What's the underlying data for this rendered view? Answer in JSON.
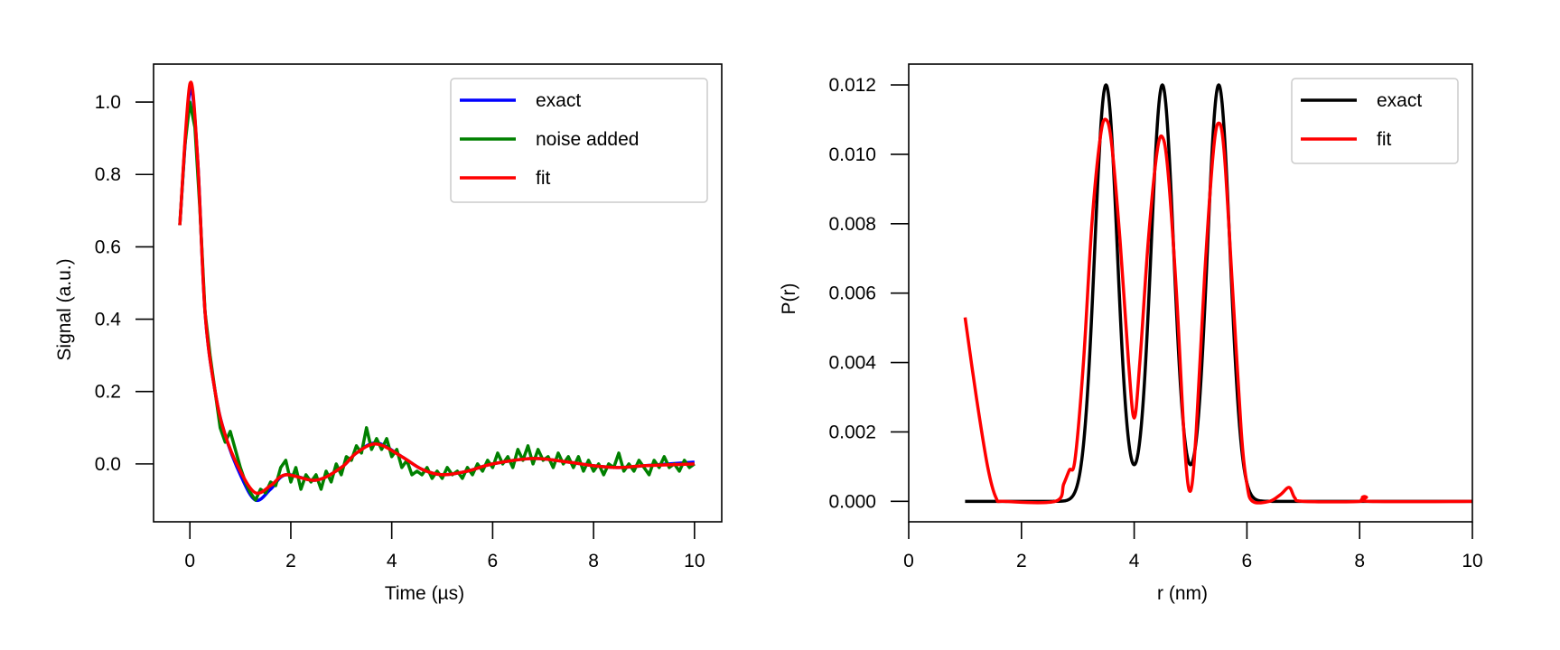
{
  "chart_data": [
    {
      "type": "line",
      "xlabel": "Time (µs)",
      "ylabel": "Signal (a.u.)",
      "xlim": [
        -0.72,
        10.54
      ],
      "ylim": [
        -0.16,
        1.105
      ],
      "xticks": [
        "0",
        "2",
        "4",
        "6",
        "8",
        "10"
      ],
      "xtick_values": [
        0,
        2,
        4,
        6,
        8,
        10
      ],
      "yticks": [
        "0.0",
        "0.2",
        "0.4",
        "0.6",
        "0.8",
        "1.0"
      ],
      "ytick_values": [
        0,
        0.2,
        0.4,
        0.6,
        0.8,
        1.0
      ],
      "grid": false,
      "legend_placement": "top-right",
      "series": [
        {
          "name": "exact",
          "color": "#0000ff",
          "style": "smooth",
          "points": [
            [
              -0.2,
              0.66
            ],
            [
              0,
              1.03
            ],
            [
              0.15,
              0.85
            ],
            [
              0.3,
              0.42
            ],
            [
              0.5,
              0.2
            ],
            [
              0.7,
              0.08
            ],
            [
              1.0,
              -0.03
            ],
            [
              1.3,
              -0.1
            ],
            [
              1.6,
              -0.07
            ],
            [
              1.9,
              -0.03
            ],
            [
              2.5,
              -0.045
            ],
            [
              3.0,
              -0.01
            ],
            [
              3.3,
              0.03
            ],
            [
              3.7,
              0.058
            ],
            [
              4.2,
              0.02
            ],
            [
              4.6,
              -0.015
            ],
            [
              5.0,
              -0.03
            ],
            [
              5.5,
              -0.02
            ],
            [
              6.0,
              0.0
            ],
            [
              6.8,
              0.015
            ],
            [
              7.5,
              0.005
            ],
            [
              8.0,
              -0.005
            ],
            [
              8.5,
              -0.01
            ],
            [
              9.0,
              -0.005
            ],
            [
              10.0,
              0.005
            ]
          ]
        },
        {
          "name": "noise added",
          "color": "#008000",
          "style": "linear",
          "points": [
            [
              -0.2,
              0.66
            ],
            [
              -0.1,
              0.88
            ],
            [
              0,
              1.0
            ],
            [
              0.1,
              0.93
            ],
            [
              0.2,
              0.7
            ],
            [
              0.3,
              0.42
            ],
            [
              0.4,
              0.3
            ],
            [
              0.5,
              0.2
            ],
            [
              0.6,
              0.1
            ],
            [
              0.7,
              0.06
            ],
            [
              0.8,
              0.09
            ],
            [
              0.9,
              0.04
            ],
            [
              1.0,
              -0.01
            ],
            [
              1.1,
              -0.05
            ],
            [
              1.2,
              -0.08
            ],
            [
              1.3,
              -0.1
            ],
            [
              1.4,
              -0.07
            ],
            [
              1.5,
              -0.08
            ],
            [
              1.6,
              -0.05
            ],
            [
              1.7,
              -0.06
            ],
            [
              1.8,
              -0.01
            ],
            [
              1.9,
              0.01
            ],
            [
              2.0,
              -0.05
            ],
            [
              2.1,
              -0.01
            ],
            [
              2.2,
              -0.07
            ],
            [
              2.3,
              -0.03
            ],
            [
              2.4,
              -0.05
            ],
            [
              2.5,
              -0.03
            ],
            [
              2.6,
              -0.07
            ],
            [
              2.7,
              -0.02
            ],
            [
              2.8,
              -0.05
            ],
            [
              2.9,
              0.0
            ],
            [
              3.0,
              -0.03
            ],
            [
              3.1,
              0.02
            ],
            [
              3.2,
              0.01
            ],
            [
              3.3,
              0.05
            ],
            [
              3.4,
              0.03
            ],
            [
              3.5,
              0.1
            ],
            [
              3.6,
              0.04
            ],
            [
              3.7,
              0.07
            ],
            [
              3.8,
              0.04
            ],
            [
              3.9,
              0.07
            ],
            [
              4.0,
              0.02
            ],
            [
              4.1,
              0.04
            ],
            [
              4.2,
              -0.01
            ],
            [
              4.3,
              0.01
            ],
            [
              4.4,
              -0.03
            ],
            [
              4.5,
              -0.02
            ],
            [
              4.6,
              -0.03
            ],
            [
              4.7,
              -0.01
            ],
            [
              4.8,
              -0.04
            ],
            [
              4.9,
              -0.02
            ],
            [
              5.0,
              -0.04
            ],
            [
              5.1,
              -0.01
            ],
            [
              5.2,
              -0.03
            ],
            [
              5.3,
              -0.02
            ],
            [
              5.4,
              -0.04
            ],
            [
              5.5,
              -0.01
            ],
            [
              5.6,
              -0.03
            ],
            [
              5.7,
              0.0
            ],
            [
              5.8,
              -0.02
            ],
            [
              5.9,
              0.01
            ],
            [
              6.0,
              -0.01
            ],
            [
              6.1,
              0.03
            ],
            [
              6.2,
              0.0
            ],
            [
              6.3,
              0.02
            ],
            [
              6.4,
              -0.01
            ],
            [
              6.5,
              0.04
            ],
            [
              6.6,
              0.01
            ],
            [
              6.7,
              0.05
            ],
            [
              6.8,
              0.0
            ],
            [
              6.9,
              0.04
            ],
            [
              7.0,
              0.01
            ],
            [
              7.1,
              0.02
            ],
            [
              7.2,
              -0.01
            ],
            [
              7.3,
              0.03
            ],
            [
              7.4,
              0.0
            ],
            [
              7.5,
              0.02
            ],
            [
              7.6,
              -0.01
            ],
            [
              7.7,
              0.02
            ],
            [
              7.8,
              -0.02
            ],
            [
              7.9,
              0.01
            ],
            [
              8.0,
              -0.02
            ],
            [
              8.1,
              0.0
            ],
            [
              8.2,
              -0.03
            ],
            [
              8.3,
              0.0
            ],
            [
              8.4,
              -0.01
            ],
            [
              8.5,
              0.03
            ],
            [
              8.6,
              -0.02
            ],
            [
              8.7,
              0.0
            ],
            [
              8.8,
              -0.02
            ],
            [
              8.9,
              0.01
            ],
            [
              9.0,
              -0.01
            ],
            [
              9.1,
              -0.03
            ],
            [
              9.2,
              0.01
            ],
            [
              9.3,
              -0.01
            ],
            [
              9.4,
              0.02
            ],
            [
              9.5,
              -0.01
            ],
            [
              9.6,
              0.0
            ],
            [
              9.7,
              -0.02
            ],
            [
              9.8,
              0.01
            ],
            [
              9.9,
              -0.01
            ],
            [
              10.0,
              0.0
            ]
          ]
        },
        {
          "name": "fit",
          "color": "#ff0000",
          "style": "smooth",
          "points": [
            [
              -0.2,
              0.66
            ],
            [
              0,
              1.05
            ],
            [
              0.15,
              0.85
            ],
            [
              0.3,
              0.42
            ],
            [
              0.5,
              0.2
            ],
            [
              0.7,
              0.08
            ],
            [
              1.0,
              -0.02
            ],
            [
              1.3,
              -0.08
            ],
            [
              1.6,
              -0.06
            ],
            [
              1.9,
              -0.03
            ],
            [
              2.5,
              -0.045
            ],
            [
              3.0,
              -0.01
            ],
            [
              3.3,
              0.03
            ],
            [
              3.7,
              0.055
            ],
            [
              4.2,
              0.02
            ],
            [
              4.6,
              -0.015
            ],
            [
              5.0,
              -0.03
            ],
            [
              5.5,
              -0.02
            ],
            [
              6.0,
              0.0
            ],
            [
              6.8,
              0.015
            ],
            [
              7.5,
              0.005
            ],
            [
              8.0,
              -0.005
            ],
            [
              8.5,
              -0.01
            ],
            [
              9.0,
              -0.005
            ],
            [
              10.0,
              0.0
            ]
          ]
        }
      ]
    },
    {
      "type": "line",
      "xlabel": "r (nm)",
      "ylabel": "P(r)",
      "xlim": [
        0,
        10
      ],
      "ylim": [
        -0.00059,
        0.0126
      ],
      "xticks": [
        "0",
        "2",
        "4",
        "6",
        "8",
        "10"
      ],
      "xtick_values": [
        0,
        2,
        4,
        6,
        8,
        10
      ],
      "yticks": [
        "0.000",
        "0.002",
        "0.004",
        "0.006",
        "0.008",
        "0.010",
        "0.012"
      ],
      "ytick_values": [
        0,
        0.002,
        0.004,
        0.006,
        0.008,
        0.01,
        0.012
      ],
      "grid": false,
      "legend_placement": "top-right",
      "series": [
        {
          "name": "exact",
          "color": "#000000",
          "style": "gaussians",
          "range": [
            1,
            10
          ],
          "centers": [
            3.5,
            4.5,
            5.5
          ],
          "height": 0.012,
          "sigma": 0.2
        },
        {
          "name": "fit",
          "color": "#ff0000",
          "style": "smooth",
          "points": [
            [
              1.0,
              0.0053
            ],
            [
              1.2,
              0.003
            ],
            [
              1.4,
              0.001
            ],
            [
              1.55,
              0.0001
            ],
            [
              1.7,
              0
            ],
            [
              2.6,
              0
            ],
            [
              2.75,
              0.0005
            ],
            [
              2.85,
              0.0009
            ],
            [
              2.95,
              0.0012
            ],
            [
              3.1,
              0.004
            ],
            [
              3.25,
              0.008
            ],
            [
              3.4,
              0.0105
            ],
            [
              3.5,
              0.011
            ],
            [
              3.6,
              0.0103
            ],
            [
              3.75,
              0.0075
            ],
            [
              3.9,
              0.004
            ],
            [
              4.0,
              0.0024
            ],
            [
              4.1,
              0.004
            ],
            [
              4.25,
              0.0075
            ],
            [
              4.4,
              0.01
            ],
            [
              4.5,
              0.0105
            ],
            [
              4.6,
              0.0095
            ],
            [
              4.75,
              0.006
            ],
            [
              4.9,
              0.0015
            ],
            [
              5.0,
              0.0003
            ],
            [
              5.1,
              0.002
            ],
            [
              5.25,
              0.0065
            ],
            [
              5.4,
              0.01
            ],
            [
              5.5,
              0.0109
            ],
            [
              5.6,
              0.01
            ],
            [
              5.75,
              0.006
            ],
            [
              5.9,
              0.002
            ],
            [
              6.0,
              0.0005
            ],
            [
              6.1,
              0
            ],
            [
              6.4,
              0
            ],
            [
              6.6,
              0.0002
            ],
            [
              6.75,
              0.0004
            ],
            [
              6.85,
              0.0001
            ],
            [
              7.0,
              0
            ],
            [
              8.0,
              0
            ],
            [
              8.05,
              0.00012
            ],
            [
              8.12,
              0.00012
            ],
            [
              8.18,
              0
            ],
            [
              10,
              0
            ]
          ]
        }
      ]
    }
  ]
}
